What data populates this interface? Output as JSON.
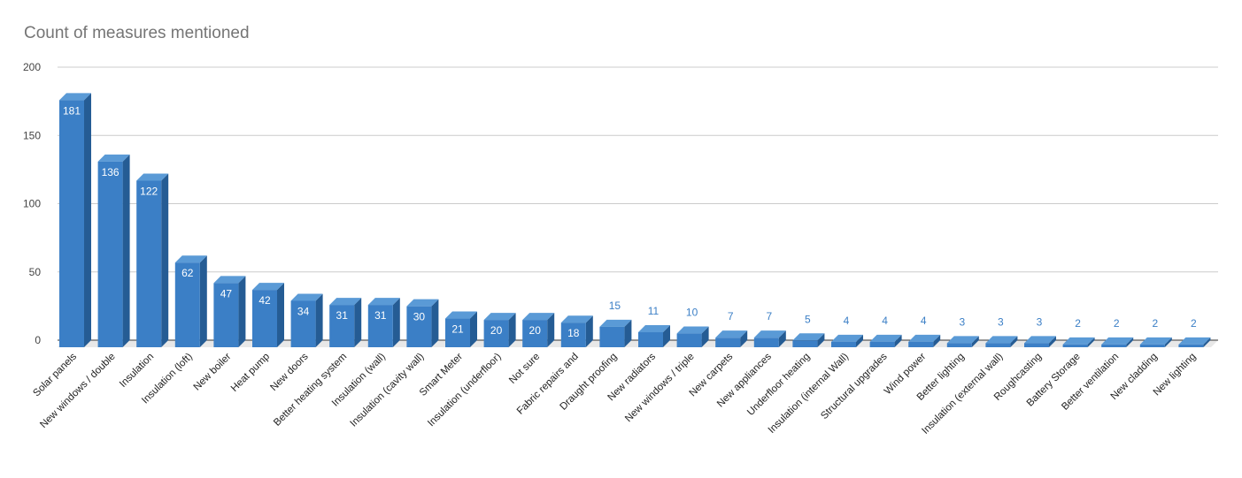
{
  "colors": {
    "bar_front": "#3b7fc6",
    "bar_side": "#255c94",
    "bar_top": "#5a9ad6",
    "grid": "#cccccc",
    "baseline": "#333333",
    "floor": "#e8e8e8",
    "label_inside": "#ffffff",
    "label_outside": "#3b7fc6"
  },
  "chart_data": {
    "type": "bar",
    "title": "Count of measures mentioned",
    "xlabel": "",
    "ylabel": "",
    "ylim": [
      0,
      200
    ],
    "yticks": [
      0,
      50,
      100,
      150,
      200
    ],
    "grid": true,
    "legend": "none",
    "categories": [
      "Solar panels",
      "New windows / double",
      "Insulation",
      "Insulation (loft)",
      "New boiler",
      "Heat pump",
      "New doors",
      "Better heating system",
      "Insulation (wall)",
      "Insulation (cavity wall)",
      "Smart Meter",
      "Insulation (underfloor)",
      "Not sure",
      "Fabric repairs and",
      "Draught proofing",
      "New radiators",
      "New windows / triple",
      "New carpets",
      "New appliances",
      "Underfloor heating",
      "Insulation (internal Wall)",
      "Structural upgrades",
      "Wind power",
      "Better lighting",
      "Insulation (external wall)",
      "Roughcasting",
      "Battery Storage",
      "Better ventilation",
      "New cladding",
      "New lighting"
    ],
    "values": [
      181,
      136,
      122,
      62,
      47,
      42,
      34,
      31,
      31,
      30,
      21,
      20,
      20,
      18,
      15,
      11,
      10,
      7,
      7,
      5,
      4,
      4,
      4,
      3,
      3,
      3,
      2,
      2,
      2,
      2
    ]
  }
}
